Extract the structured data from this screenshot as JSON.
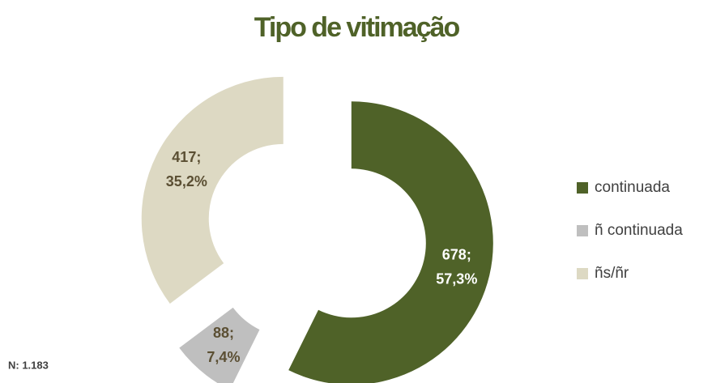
{
  "chart_data": {
    "type": "donut",
    "title": "Tipo de vitimação",
    "categories": [
      "continuada",
      "ñ continuada",
      "ñs/ñr"
    ],
    "values": [
      678,
      88,
      417
    ],
    "value_labels": [
      [
        "678;",
        "57,3%"
      ],
      [
        "88;",
        "7,4%"
      ],
      [
        "417;",
        "35,2%"
      ]
    ],
    "colors": [
      "#4f6228",
      "#bfbfbf",
      "#ddd9c3"
    ],
    "label_colors": [
      "#ffffff",
      "#5b4f33",
      "#5b4f33"
    ],
    "legend": "right",
    "note": "N: 1.183"
  }
}
